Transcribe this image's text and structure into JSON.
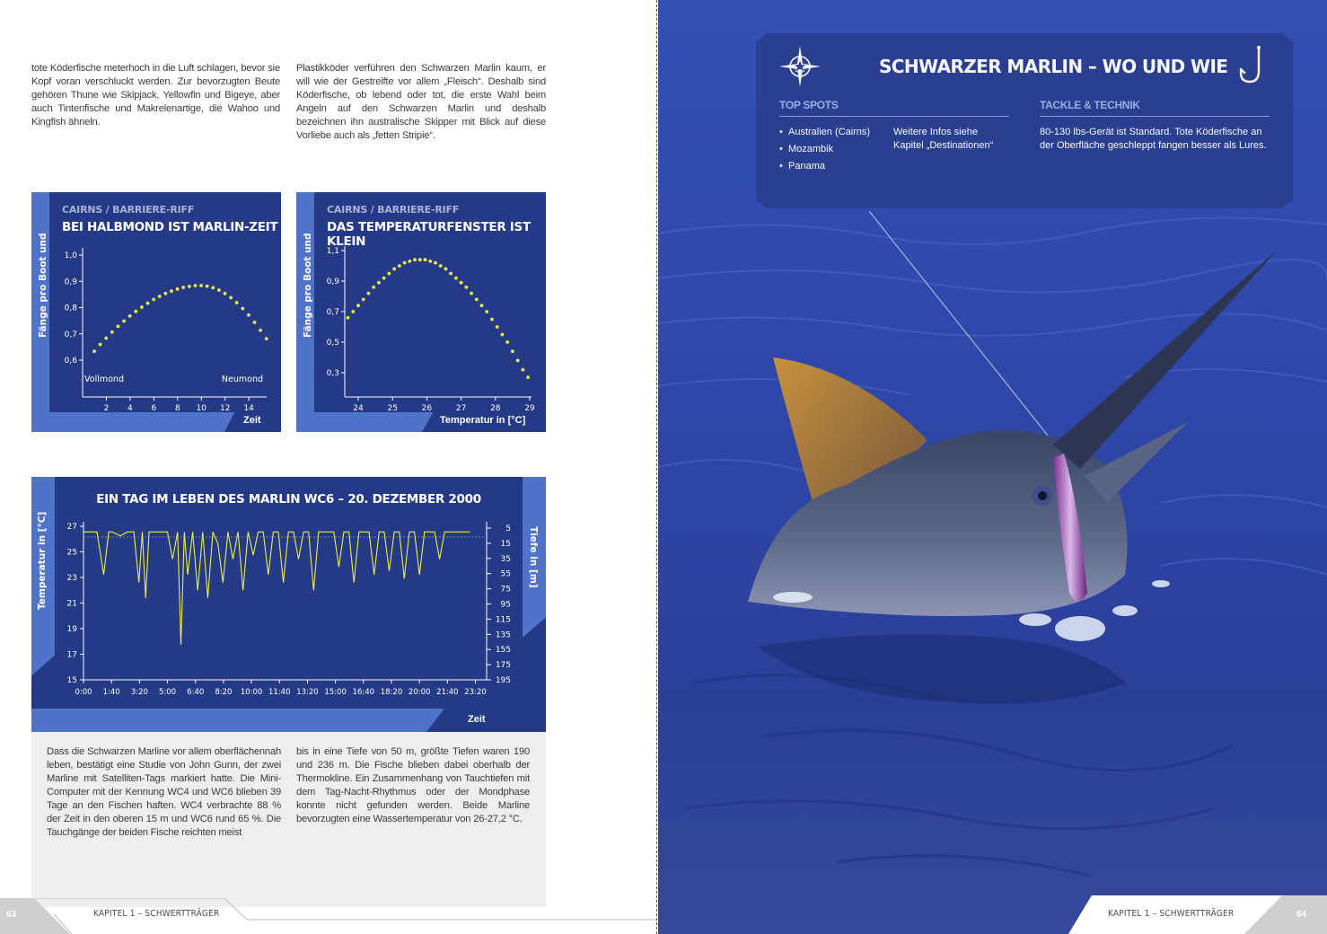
{
  "left_page": {
    "para_top_left": "tote Köderfische meterhoch in die Luft schlagen, bevor sie Kopf voran verschluckt werden. Zur bevorzugten Beute gehören Thune wie Skipjack, Yellowfin und Bigeye, aber auch Tintenfische und Makrelenartige, die Wahoo und Kingfish ähneln.",
    "para_top_right": "Plastikköder verführen den Schwarzen Marlin kaum, er will wie der Gestreifte vor allem „Fleisch“. Deshalb sind Köderfische, ob lebend oder tot, die erste Wahl beim Angeln auf den Schwarzen Marlin und deshalb bezeichnen ihn australische Skipper mit Blick auf diese Vorliebe auch als „fetten Stripie“.",
    "para_bottom_left": "Dass die Schwarzen Marline vor allem oberflächennah leben, bestätigt eine Studie von John Gunn, der zwei Marline mit Satelliten-Tags markiert hatte. Die Mini-Computer mit der Kennung WC4 und WC6 blieben 39 Tage an den Fischen haften. WC4 verbrachte 88 % der Zeit in den oberen 15 m und WC6 rund 65 %. Die Tauchgänge der beiden Fische reichten meist",
    "para_bottom_right": "bis in eine Tiefe von 50 m, größte Tiefen waren 190 und 236 m. Die Fische blieben dabei oberhalb der Thermokline. Ein Zusammenhang von Tauchtiefen mit dem Tag-Nacht-Rhythmus oder der Mondphase konnte nicht gefunden werden. Beide Marline bevorzugten eine Wassertemperatur von 26-27,2 °C.",
    "page_number": "63",
    "footer": "KAPITEL  1 – SCHWERTTRÄGER"
  },
  "right_page": {
    "page_number": "64",
    "footer": "KAPITEL  1 – SCHWERTTRÄGER",
    "photo_icon": "black-marlin-photo",
    "info_box": {
      "title": "SCHWARZER MARLIN – WO UND WIE",
      "compass_icon": "compass-star-icon",
      "hook_icon": "fish-hook-icon",
      "top_spots_heading": "TOP SPOTS",
      "spots": [
        "Australien (Cairns)",
        "Mozambik",
        "Panama"
      ],
      "more_info": "Weitere Infos siehe Kapitel „Destinationen“",
      "tackle_heading": "TACKLE & TECHNIK",
      "tackle_text": "80-130 lbs-Gerät ist Standard. Tote Köderfische an der Oberfläche geschleppt fangen besser als Lures."
    }
  },
  "colors": {
    "panel": "#253a86",
    "accent_light": "#4e73c8",
    "series": "#ecec4a"
  },
  "chart_data": [
    {
      "type": "scatter",
      "supertitle": "CAIRNS / BARRIERE-RIFF",
      "title": "BEI HALBMOND IST MARLIN-ZEIT",
      "ylabel": "Fänge pro Boot und",
      "xlabel": "Zeit",
      "x_start_label": "Vollmond",
      "x_end_label": "Neumond",
      "xticks": [
        "2",
        "4",
        "6",
        "8",
        "10",
        "12",
        "14"
      ],
      "yticks": [
        "1,0",
        "0,9",
        "0,8",
        "0,7",
        "0,6"
      ],
      "xlim": [
        0,
        15.5
      ],
      "ylim": [
        0.55,
        1.0
      ],
      "x": [
        0.0,
        0.5,
        1.0,
        1.5,
        2.0,
        2.5,
        3.0,
        3.5,
        4.0,
        4.5,
        5.0,
        5.5,
        6.0,
        6.5,
        7.0,
        7.5,
        8.0,
        8.5,
        9.0,
        9.5,
        10.0,
        10.5,
        11.0,
        11.5,
        12.0,
        12.5,
        13.0,
        13.5,
        14.0,
        14.5
      ],
      "y": [
        0.62,
        0.646,
        0.67,
        0.693,
        0.715,
        0.735,
        0.754,
        0.772,
        0.788,
        0.803,
        0.817,
        0.829,
        0.84,
        0.849,
        0.857,
        0.863,
        0.867,
        0.87,
        0.87,
        0.868,
        0.862,
        0.853,
        0.84,
        0.824,
        0.805,
        0.783,
        0.758,
        0.73,
        0.7,
        0.668
      ]
    },
    {
      "type": "scatter",
      "supertitle": "CAIRNS / BARRIERE-RIFF",
      "title": "DAS TEMPERATURFENSTER IST KLEIN",
      "ylabel": "Fänge pro Boot und",
      "xlabel": "Temperatur in [°C]",
      "xticks": [
        "24",
        "25",
        "26",
        "27",
        "28",
        "29"
      ],
      "yticks": [
        "1,1",
        "0,9",
        "0,7",
        "0,5",
        "0,3"
      ],
      "xlim": [
        23.7,
        29.0
      ],
      "ylim": [
        0.22,
        1.12
      ],
      "x": [
        23.7,
        23.85,
        24.0,
        24.15,
        24.3,
        24.45,
        24.6,
        24.75,
        24.9,
        25.05,
        25.2,
        25.35,
        25.5,
        25.65,
        25.8,
        25.95,
        26.1,
        26.25,
        26.4,
        26.55,
        26.7,
        26.85,
        27.0,
        27.15,
        27.3,
        27.45,
        27.6,
        27.75,
        27.9,
        28.05,
        28.2,
        28.35,
        28.5,
        28.65,
        28.8,
        28.95
      ],
      "y": [
        0.66,
        0.7,
        0.74,
        0.78,
        0.82,
        0.86,
        0.89,
        0.92,
        0.95,
        0.98,
        1.0,
        1.02,
        1.03,
        1.04,
        1.04,
        1.04,
        1.03,
        1.02,
        1.0,
        0.98,
        0.95,
        0.92,
        0.89,
        0.86,
        0.82,
        0.78,
        0.74,
        0.7,
        0.65,
        0.6,
        0.55,
        0.5,
        0.44,
        0.38,
        0.32,
        0.27
      ]
    },
    {
      "type": "line",
      "title": "EIN TAG IM LEBEN DES MARLIN WC6 – 20. DEZEMBER 2000",
      "ylabel": "Temperatur in [°C]",
      "y2label": "Tiefe in [m]",
      "xlabel": "Zeit",
      "xticks": [
        "0:00",
        "1:40",
        "3:20",
        "5:00",
        "6:40",
        "8:20",
        "10:00",
        "11:40",
        "13:20",
        "15:00",
        "16:40",
        "18:20",
        "20:00",
        "21:40",
        "23:20"
      ],
      "yticks": [
        "27",
        "25",
        "23",
        "21",
        "19",
        "17",
        "15"
      ],
      "y2ticks": [
        "5",
        "15",
        "35",
        "55",
        "75",
        "95",
        "115",
        "135",
        "155",
        "175",
        "195"
      ],
      "ylim": [
        15,
        27
      ],
      "y2lim": [
        0,
        195
      ],
      "series": [
        {
          "values_x_hours": [
            0.0,
            0.3,
            0.8,
            1.2,
            1.5,
            1.7,
            2.2,
            2.6,
            3.0,
            3.3,
            3.5,
            3.7,
            3.9,
            4.3,
            4.6,
            5.0,
            5.3,
            5.6,
            5.8,
            6.0,
            6.2,
            6.5,
            6.8,
            7.1,
            7.4,
            7.7,
            8.0,
            8.3,
            8.6,
            8.9,
            9.2,
            9.5,
            9.8,
            10.1,
            10.4,
            10.7,
            11.0,
            11.3,
            11.6,
            11.9,
            12.2,
            12.5,
            12.8,
            13.1,
            13.4,
            13.7,
            14.0,
            14.3,
            14.6,
            14.9,
            15.2,
            15.5,
            15.8,
            16.1,
            16.4,
            16.7,
            17.0,
            17.3,
            17.6,
            17.9,
            18.2,
            18.5,
            18.8,
            19.1,
            19.4,
            19.7,
            20.0,
            20.3,
            20.6,
            20.9,
            21.2,
            21.5,
            21.8,
            22.1,
            22.4,
            22.7,
            23.0
          ],
          "depth_m": [
            5,
            5,
            5,
            60,
            5,
            5,
            10,
            5,
            5,
            70,
            5,
            90,
            5,
            5,
            5,
            5,
            40,
            5,
            150,
            5,
            60,
            5,
            80,
            5,
            90,
            5,
            20,
            70,
            5,
            40,
            5,
            80,
            5,
            35,
            5,
            5,
            60,
            5,
            5,
            70,
            5,
            5,
            40,
            5,
            5,
            80,
            5,
            5,
            5,
            5,
            50,
            5,
            5,
            70,
            5,
            5,
            5,
            60,
            5,
            5,
            55,
            5,
            5,
            65,
            5,
            5,
            60,
            5,
            5,
            5,
            40,
            5,
            5,
            5,
            5,
            5,
            5
          ]
        }
      ]
    }
  ]
}
